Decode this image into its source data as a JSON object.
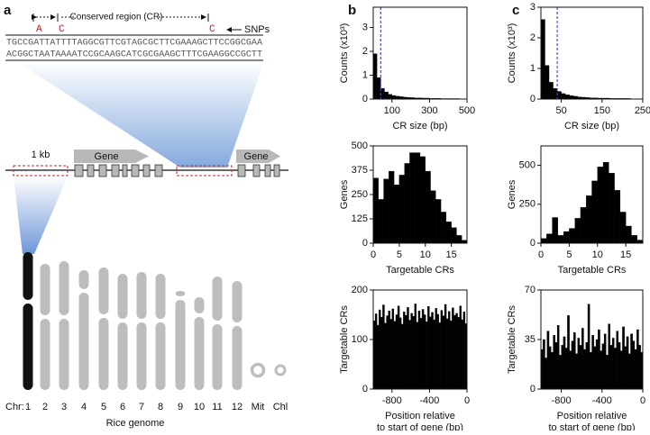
{
  "panel_labels": [
    "a",
    "b",
    "c"
  ],
  "diagram": {
    "cr_label": "Conserved region (CR)",
    "snp_label": "SNPs",
    "snp_bases": [
      "A",
      "C",
      "C"
    ],
    "sequence_top": "TGCCGATTATTTTAGGCGTTCGTAGCGCTTCGAAAGCTTCCGGCGAA",
    "sequence_bottom": "ACGGCTAATAAAATCCGCAAGCATCGCGAAGCTTTCGAAGGCCGCTT",
    "scale_label": "1 kb",
    "genes": [
      "Gene",
      "Gene"
    ],
    "chr_prefix": "Chr:",
    "chromosomes": [
      "1",
      "2",
      "3",
      "4",
      "5",
      "6",
      "7",
      "8",
      "9",
      "10",
      "11",
      "12",
      "Mit",
      "Chl"
    ],
    "genome_label": "Rice genome"
  },
  "chart_data": [
    {
      "type": "histogram",
      "ylabel": "Counts (x10³)",
      "xlabel": "CR size (bp)",
      "color": "#000000",
      "bins": [
        0,
        20,
        40,
        60,
        80,
        100,
        120,
        140,
        160,
        180,
        200,
        220,
        240,
        260,
        280,
        300,
        320,
        340,
        360,
        380,
        400,
        420,
        440,
        460,
        480,
        500
      ],
      "values": [
        1.9,
        0.9,
        0.45,
        0.3,
        0.2,
        0.15,
        0.12,
        0.1,
        0.08,
        0.07,
        0.06,
        0.05,
        0.05,
        0.04,
        0.04,
        0.03,
        0.03,
        0.03,
        0.02,
        0.02,
        0.02,
        0.02,
        0.02,
        0.01,
        0.01
      ],
      "xlim": [
        0,
        500
      ],
      "ylim": [
        0,
        3.85
      ],
      "xticks": [
        100,
        300,
        500
      ],
      "yticks": [
        0,
        1,
        2,
        3
      ],
      "vline": {
        "x": 40,
        "color": "#4b4bc8"
      }
    },
    {
      "type": "histogram",
      "ylabel": "Genes",
      "xlabel": "Targetable CRs",
      "color": "#000000",
      "bins": [
        0,
        1,
        2,
        3,
        4,
        5,
        6,
        7,
        8,
        9,
        10,
        11,
        12,
        13,
        14,
        15,
        16,
        17,
        18
      ],
      "values": [
        335,
        225,
        330,
        370,
        300,
        350,
        410,
        465,
        465,
        445,
        370,
        270,
        225,
        160,
        110,
        80,
        40,
        15
      ],
      "xlim": [
        0,
        18
      ],
      "ylim": [
        0,
        500
      ],
      "xticks": [
        0,
        5,
        10,
        15
      ],
      "yticks": [
        0,
        125,
        250,
        375,
        500
      ]
    },
    {
      "type": "histogram",
      "ylabel": "Targetable CRs",
      "xlabel": [
        "Position relative",
        "to start of gene (bp)"
      ],
      "color": "#000000",
      "bins": [
        -1000,
        -980,
        -960,
        -940,
        -920,
        -900,
        -880,
        -860,
        -840,
        -820,
        -800,
        -780,
        -760,
        -740,
        -720,
        -700,
        -680,
        -660,
        -640,
        -620,
        -600,
        -580,
        -560,
        -540,
        -520,
        -500,
        -480,
        -460,
        -440,
        -420,
        -400,
        -380,
        -360,
        -340,
        -320,
        -300,
        -280,
        -260,
        -240,
        -220,
        -200,
        -180,
        -160,
        -140,
        -120,
        -100,
        -80,
        -60,
        -40,
        -20,
        0
      ],
      "values": [
        138,
        152,
        129,
        160,
        145,
        170,
        133,
        148,
        158,
        141,
        162,
        137,
        150,
        168,
        144,
        131,
        156,
        149,
        165,
        139,
        153,
        147,
        172,
        135,
        158,
        143,
        161,
        150,
        136,
        167,
        146,
        155,
        140,
        163,
        151,
        134,
        159,
        148,
        171,
        142,
        157,
        138,
        164,
        149,
        153,
        145,
        168,
        140,
        156,
        132
      ],
      "xlim": [
        -1000,
        0
      ],
      "ylim": [
        0,
        200
      ],
      "xticks": [
        -800,
        -400,
        0
      ],
      "yticks": [
        0,
        100,
        200
      ]
    },
    {
      "type": "histogram",
      "ylabel": "Counts (x10³)",
      "xlabel": "CR size (bp)",
      "color": "#000000",
      "bins": [
        0,
        10,
        20,
        30,
        40,
        50,
        60,
        70,
        80,
        90,
        100,
        110,
        120,
        130,
        140,
        150,
        160,
        170,
        180,
        190,
        200,
        210,
        220,
        230,
        240,
        250
      ],
      "values": [
        2.6,
        1.1,
        0.55,
        0.35,
        0.25,
        0.18,
        0.14,
        0.11,
        0.09,
        0.07,
        0.06,
        0.05,
        0.04,
        0.04,
        0.03,
        0.03,
        0.03,
        0.02,
        0.02,
        0.02,
        0.02,
        0.02,
        0.01,
        0.01,
        0.01
      ],
      "xlim": [
        0,
        250
      ],
      "ylim": [
        0,
        3
      ],
      "xticks": [
        50,
        150,
        250
      ],
      "yticks": [
        0,
        1,
        2,
        3
      ],
      "vline": {
        "x": 40,
        "color": "#4b4bc8"
      }
    },
    {
      "type": "histogram",
      "ylabel": "Genes",
      "xlabel": "Targetable CRs",
      "color": "#000000",
      "bins": [
        0,
        1,
        2,
        3,
        4,
        5,
        6,
        7,
        8,
        9,
        10,
        11,
        12,
        13,
        14,
        15,
        16,
        17,
        18
      ],
      "values": [
        30,
        60,
        165,
        50,
        75,
        95,
        160,
        230,
        305,
        400,
        490,
        520,
        450,
        340,
        200,
        110,
        50,
        20
      ],
      "xlim": [
        0,
        18
      ],
      "ylim": [
        0,
        625
      ],
      "xticks": [
        0,
        5,
        10,
        15
      ],
      "yticks": [
        0,
        250,
        500
      ]
    },
    {
      "type": "histogram",
      "ylabel": "Targetable CRs",
      "xlabel": [
        "Position relative",
        "to start of gene (bp)"
      ],
      "color": "#000000",
      "bins": [
        -1000,
        -980,
        -960,
        -940,
        -920,
        -900,
        -880,
        -860,
        -840,
        -820,
        -800,
        -780,
        -760,
        -740,
        -720,
        -700,
        -680,
        -660,
        -640,
        -620,
        -600,
        -580,
        -560,
        -540,
        -520,
        -500,
        -480,
        -460,
        -440,
        -420,
        -400,
        -380,
        -360,
        -340,
        -320,
        -300,
        -280,
        -260,
        -240,
        -220,
        -200,
        -180,
        -160,
        -140,
        -120,
        -100,
        -80,
        -60,
        -40,
        -20,
        0
      ],
      "values": [
        28,
        35,
        22,
        41,
        30,
        26,
        38,
        33,
        45,
        24,
        31,
        37,
        29,
        52,
        27,
        34,
        40,
        25,
        36,
        31,
        43,
        28,
        33,
        60,
        26,
        38,
        30,
        35,
        42,
        27,
        32,
        39,
        24,
        46,
        31,
        36,
        29,
        41,
        33,
        27,
        44,
        30,
        37,
        25,
        39,
        34,
        28,
        42,
        31,
        26
      ],
      "xlim": [
        -1000,
        0
      ],
      "ylim": [
        0,
        70
      ],
      "xticks": [
        -800,
        -400,
        0
      ],
      "yticks": [
        0,
        35,
        70
      ]
    }
  ]
}
